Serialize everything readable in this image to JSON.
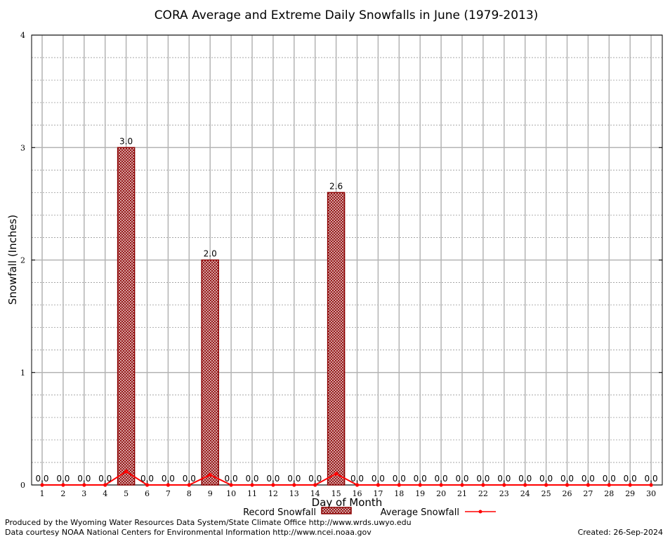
{
  "chart_data": {
    "type": "bar",
    "title": "CORA Average and Extreme Daily Snowfalls in June (1979-2013)",
    "xlabel": "Day of Month",
    "ylabel": "Snowfall (Inches)",
    "ylim": [
      0,
      4
    ],
    "yticks": [
      "0",
      "1",
      "2",
      "3",
      "4"
    ],
    "grid": true,
    "categories": [
      "1",
      "2",
      "3",
      "4",
      "5",
      "6",
      "7",
      "8",
      "9",
      "10",
      "11",
      "12",
      "13",
      "14",
      "15",
      "16",
      "17",
      "18",
      "19",
      "20",
      "21",
      "22",
      "23",
      "24",
      "25",
      "26",
      "27",
      "28",
      "29",
      "30"
    ],
    "series": [
      {
        "name": "Record Snowfall",
        "kind": "bar",
        "color": "#8b0000",
        "values": [
          0,
          0,
          0,
          0,
          3.0,
          0,
          0,
          0,
          2.0,
          0,
          0,
          0,
          0,
          0,
          2.6,
          0,
          0,
          0,
          0,
          0,
          0,
          0,
          0,
          0,
          0,
          0,
          0,
          0,
          0,
          0
        ],
        "labels": [
          "0.0",
          "0.0",
          "0.0",
          "0.0",
          "3.0",
          "0.0",
          "0.0",
          "0.0",
          "2.0",
          "0.0",
          "0.0",
          "0.0",
          "0.0",
          "0.0",
          "2.6",
          "0.0",
          "0.0",
          "0.0",
          "0.0",
          "0.0",
          "0.0",
          "0.0",
          "0.0",
          "0.0",
          "0.0",
          "0.0",
          "0.0",
          "0.0",
          "0.0",
          "0.0"
        ]
      },
      {
        "name": "Average Snowfall",
        "kind": "line",
        "color": "#ff0000",
        "values": [
          0,
          0,
          0,
          0,
          0.12,
          0,
          0,
          0,
          0.09,
          0,
          0,
          0,
          0,
          0,
          0.1,
          0,
          0,
          0,
          0,
          0,
          0,
          0,
          0,
          0,
          0,
          0,
          0,
          0,
          0,
          0
        ]
      }
    ],
    "legend": "bottom-center"
  },
  "footer": {
    "produced_by": "Produced by the Wyoming Water Resources Data System/State Climate Office http://www.wrds.uwyo.edu",
    "courtesy": "Data courtesy NOAA National Centers for Environmental Information http://www.ncei.noaa.gov",
    "created": "Created:  26-Sep-2024"
  }
}
